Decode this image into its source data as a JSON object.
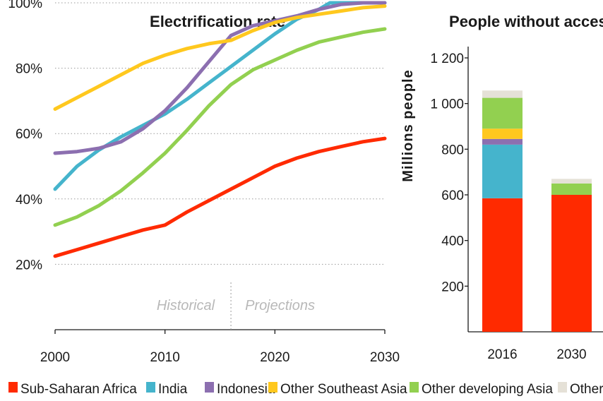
{
  "chart_data": [
    {
      "type": "line",
      "title": "Electrification rate",
      "x_ticks": [
        "2000",
        "2010",
        "2020",
        "2030"
      ],
      "y_ticks": [
        "20%",
        "40%",
        "60%",
        "80%",
        "100%"
      ],
      "xlim": [
        2000,
        2030
      ],
      "ylim": [
        0,
        100
      ],
      "grid": "horizontal dotted",
      "annotations": [
        "Historical",
        "Projections"
      ],
      "divider_x": 2016,
      "series": [
        {
          "name": "Sub-Saharan Africa",
          "color": "#ff2a00",
          "points": [
            [
              2000,
              22.5
            ],
            [
              2002,
              24.5
            ],
            [
              2004,
              26.5
            ],
            [
              2006,
              28.5
            ],
            [
              2008,
              30.5
            ],
            [
              2010,
              32
            ],
            [
              2012,
              36
            ],
            [
              2014,
              39.5
            ],
            [
              2016,
              43
            ],
            [
              2018,
              46.5
            ],
            [
              2020,
              50
            ],
            [
              2022,
              52.5
            ],
            [
              2024,
              54.5
            ],
            [
              2026,
              56
            ],
            [
              2028,
              57.5
            ],
            [
              2030,
              58.5
            ]
          ]
        },
        {
          "name": "India",
          "color": "#45b4cc",
          "points": [
            [
              2000,
              43
            ],
            [
              2002,
              50
            ],
            [
              2004,
              55
            ],
            [
              2006,
              59
            ],
            [
              2008,
              62.5
            ],
            [
              2010,
              66
            ],
            [
              2012,
              70.5
            ],
            [
              2014,
              75.5
            ],
            [
              2016,
              80.5
            ],
            [
              2018,
              85.5
            ],
            [
              2020,
              90.5
            ],
            [
              2022,
              95
            ],
            [
              2024,
              98
            ],
            [
              2025,
              100
            ],
            [
              2027,
              100
            ],
            [
              2030,
              100
            ]
          ]
        },
        {
          "name": "Indonesia",
          "color": "#8c6fb0",
          "points": [
            [
              2000,
              54
            ],
            [
              2002,
              54.5
            ],
            [
              2004,
              55.5
            ],
            [
              2006,
              57.5
            ],
            [
              2008,
              61.5
            ],
            [
              2010,
              67
            ],
            [
              2012,
              74
            ],
            [
              2014,
              82
            ],
            [
              2016,
              90
            ],
            [
              2018,
              93
            ],
            [
              2020,
              94.5
            ],
            [
              2022,
              96
            ],
            [
              2024,
              98
            ],
            [
              2026,
              99.5
            ],
            [
              2028,
              100
            ],
            [
              2030,
              100
            ]
          ]
        },
        {
          "name": "Other Southeast Asia",
          "color": "#ffc81e",
          "points": [
            [
              2000,
              67.5
            ],
            [
              2002,
              71
            ],
            [
              2004,
              74.5
            ],
            [
              2006,
              78
            ],
            [
              2008,
              81.5
            ],
            [
              2010,
              84
            ],
            [
              2012,
              86
            ],
            [
              2014,
              87.5
            ],
            [
              2016,
              88.5
            ],
            [
              2018,
              91.5
            ],
            [
              2020,
              94
            ],
            [
              2022,
              95.5
            ],
            [
              2024,
              96.5
            ],
            [
              2026,
              97.5
            ],
            [
              2028,
              98.5
            ],
            [
              2030,
              99
            ]
          ]
        },
        {
          "name": "Other developing Asia",
          "color": "#92d050",
          "points": [
            [
              2000,
              32
            ],
            [
              2002,
              34.5
            ],
            [
              2004,
              38
            ],
            [
              2006,
              42.5
            ],
            [
              2008,
              48
            ],
            [
              2010,
              54
            ],
            [
              2012,
              61
            ],
            [
              2014,
              68.5
            ],
            [
              2016,
              75
            ],
            [
              2018,
              79.5
            ],
            [
              2020,
              82.5
            ],
            [
              2022,
              85.5
            ],
            [
              2024,
              88
            ],
            [
              2026,
              89.5
            ],
            [
              2028,
              91
            ],
            [
              2030,
              92
            ]
          ]
        }
      ]
    },
    {
      "type": "bar",
      "stacked": true,
      "title": "People without access",
      "ylabel": "Millions  people",
      "categories": [
        "2016",
        "2030"
      ],
      "y_ticks": [
        "200",
        "400",
        "600",
        "800",
        "1 000",
        "1 200"
      ],
      "ylim": [
        0,
        1200
      ],
      "series": [
        {
          "name": "Sub-Saharan Africa",
          "color": "#ff2a00",
          "values": [
            585,
            600
          ]
        },
        {
          "name": "India",
          "color": "#45b4cc",
          "values": [
            235,
            0
          ]
        },
        {
          "name": "Indonesia",
          "color": "#8c6fb0",
          "values": [
            25,
            0
          ]
        },
        {
          "name": "Other Southeast Asia",
          "color": "#ffc81e",
          "values": [
            45,
            0
          ]
        },
        {
          "name": "Other developing Asia",
          "color": "#92d050",
          "values": [
            135,
            50
          ]
        },
        {
          "name": "Other",
          "color": "#e5e1d7",
          "values": [
            32,
            20
          ]
        }
      ]
    }
  ],
  "legend": [
    {
      "label": "Sub-Saharan Africa",
      "color": "#ff2a00"
    },
    {
      "label": "India",
      "color": "#45b4cc"
    },
    {
      "label": "Indonesia",
      "color": "#8c6fb0"
    },
    {
      "label": "Other Southeast Asia",
      "color": "#ffc81e"
    },
    {
      "label": "Other developing Asia",
      "color": "#92d050"
    },
    {
      "label": "Other",
      "color": "#e5e1d7"
    }
  ]
}
